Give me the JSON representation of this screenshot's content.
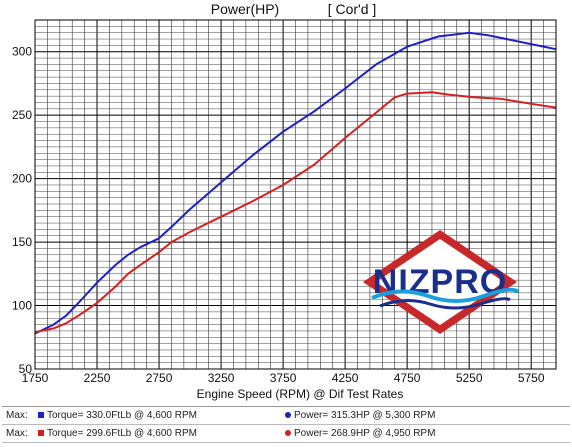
{
  "chart_data": {
    "type": "line",
    "title": "Power(HP)",
    "title_tag": "[ Cor'd ]",
    "xlabel": "Engine Speed (RPM) @ Dif Test Rates",
    "ylabel": "",
    "xlim": [
      1750,
      5950
    ],
    "ylim": [
      50,
      325
    ],
    "x_ticks": [
      1750,
      2250,
      2750,
      3250,
      3750,
      4250,
      4750,
      5250,
      5750
    ],
    "y_ticks": [
      50,
      100,
      150,
      200,
      250,
      300
    ],
    "grid": true,
    "series": [
      {
        "name": "Power",
        "color": "#1f1fc8",
        "x": [
          1750,
          1900,
          2000,
          2100,
          2250,
          2400,
          2500,
          2600,
          2750,
          2850,
          3000,
          3250,
          3500,
          3750,
          4000,
          4250,
          4500,
          4750,
          5000,
          5250,
          5400,
          5600,
          5750,
          5950
        ],
        "y": [
          78,
          85,
          92,
          102,
          118,
          132,
          140,
          146,
          153,
          162,
          176,
          197,
          218,
          237,
          253,
          271,
          290,
          304,
          312,
          315,
          313,
          309,
          306,
          302
        ]
      },
      {
        "name": "Power",
        "color": "#d42020",
        "x": [
          1750,
          1900,
          2000,
          2100,
          2250,
          2400,
          2500,
          2600,
          2750,
          2850,
          3000,
          3250,
          3500,
          3750,
          4000,
          4250,
          4500,
          4650,
          4750,
          4950,
          5100,
          5300,
          5500,
          5750,
          5950
        ],
        "y": [
          79,
          82,
          86,
          92,
          102,
          115,
          125,
          132,
          142,
          150,
          158,
          170,
          182,
          195,
          211,
          232,
          252,
          264,
          267,
          268,
          266,
          264,
          263,
          259,
          256
        ]
      }
    ],
    "footer": {
      "max_label": "Max:",
      "rows": [
        {
          "torque_color": "#1f1fc8",
          "torque_text": "Torque= 330.0FtLb @ 4,600 RPM",
          "power_color": "#1f1fc8",
          "power_text": "Power= 315.3HP @ 5,300 RPM"
        },
        {
          "torque_color": "#d42020",
          "torque_text": "Torque= 299.6FtLb @ 4,600 RPM",
          "power_color": "#d42020",
          "power_text": "Power= 268.9HP @ 4,950 RPM"
        }
      ]
    }
  },
  "logo": {
    "text": "NIZPRO",
    "diamond_color": "#c8282a",
    "text_color": "#1a2e8c",
    "wave_color": "#1aa0dc"
  }
}
